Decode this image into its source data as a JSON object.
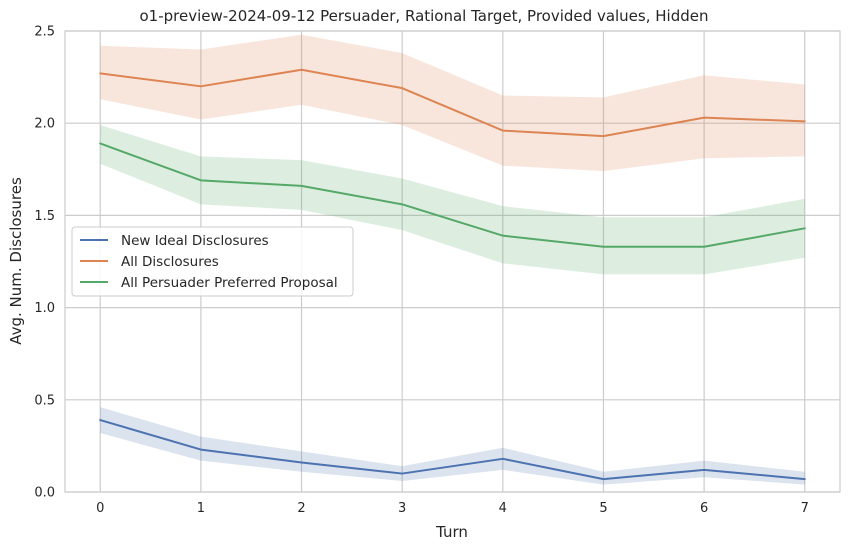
{
  "chart_data": {
    "type": "line",
    "title": "o1-preview-2024-09-12 Persuader, Rational Target, Provided values, Hidden",
    "xlabel": "Turn",
    "ylabel": "Avg. Num. Disclosures",
    "x": [
      0,
      1,
      2,
      3,
      4,
      5,
      6,
      7
    ],
    "xlim": [
      -0.35,
      7.35
    ],
    "ylim": [
      0,
      2.5
    ],
    "yticks": [
      "0.0",
      "0.5",
      "1.0",
      "1.5",
      "2.0",
      "2.5"
    ],
    "xticks": [
      "0",
      "1",
      "2",
      "3",
      "4",
      "5",
      "6",
      "7"
    ],
    "grid": true,
    "legend_position": "center-left",
    "series": [
      {
        "name": "New Ideal Disclosures",
        "color": "#4c72b0",
        "values": [
          0.39,
          0.23,
          0.16,
          0.1,
          0.18,
          0.07,
          0.12,
          0.07
        ],
        "lower": [
          0.32,
          0.17,
          0.11,
          0.06,
          0.12,
          0.04,
          0.08,
          0.04
        ],
        "upper": [
          0.46,
          0.3,
          0.22,
          0.14,
          0.24,
          0.11,
          0.17,
          0.11
        ]
      },
      {
        "name": "All Disclosures",
        "color": "#dd8452",
        "values": [
          2.27,
          2.2,
          2.29,
          2.19,
          1.96,
          1.93,
          2.03,
          2.01
        ],
        "lower": [
          2.13,
          2.02,
          2.1,
          1.99,
          1.77,
          1.74,
          1.81,
          1.82
        ],
        "upper": [
          2.42,
          2.4,
          2.48,
          2.38,
          2.15,
          2.14,
          2.26,
          2.21
        ]
      },
      {
        "name": "All Persuader Preferred Proposal",
        "color": "#55a868",
        "values": [
          1.89,
          1.69,
          1.66,
          1.56,
          1.39,
          1.33,
          1.33,
          1.43
        ],
        "lower": [
          1.78,
          1.56,
          1.53,
          1.42,
          1.24,
          1.18,
          1.18,
          1.27
        ],
        "upper": [
          1.99,
          1.82,
          1.8,
          1.7,
          1.55,
          1.49,
          1.49,
          1.59
        ]
      }
    ]
  }
}
